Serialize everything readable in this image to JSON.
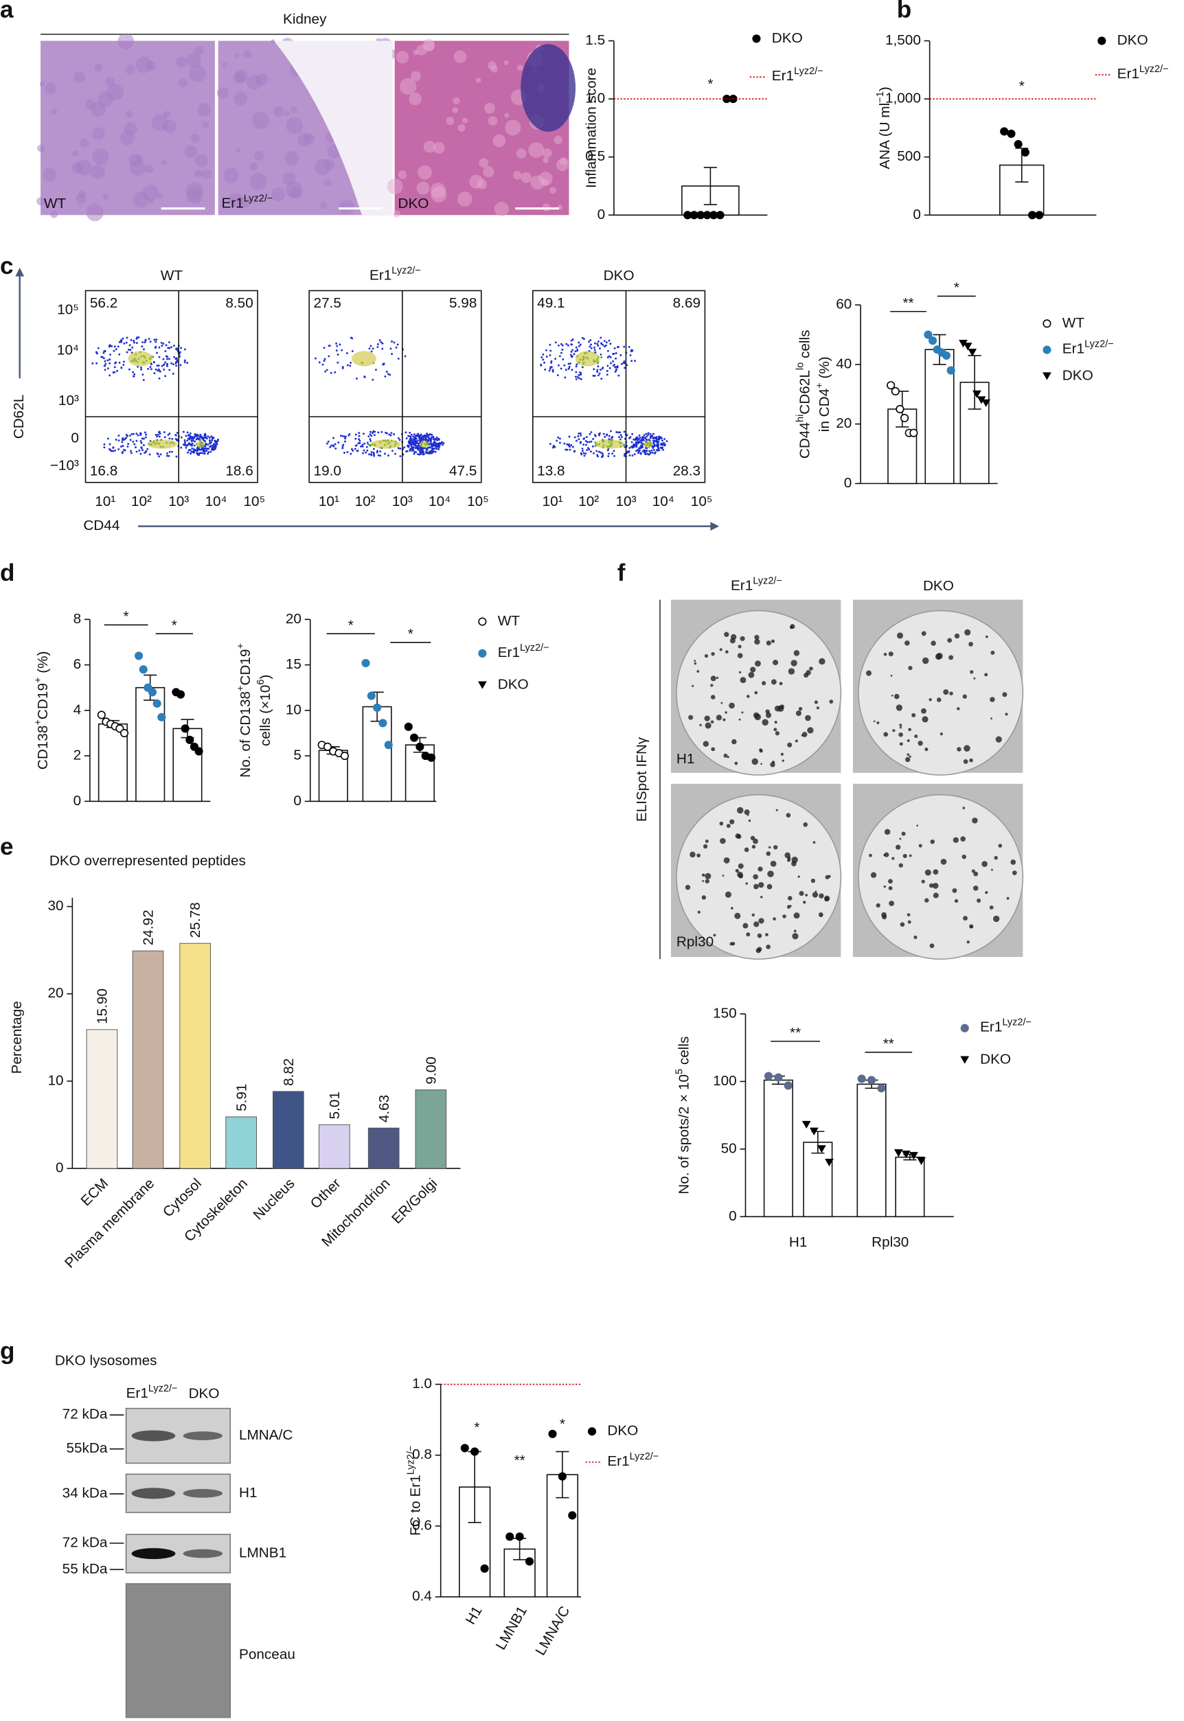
{
  "panel_labels": [
    "a",
    "b",
    "c",
    "d",
    "e",
    "f",
    "g"
  ],
  "kidney": {
    "title": "Kidney",
    "labels": [
      "WT",
      [
        "Er1",
        {
          "sup": "Lyz2/−"
        }
      ],
      "DKO"
    ]
  },
  "flow": {
    "headers": [
      "WT",
      [
        "Er1",
        {
          "sup": "Lyz2/−"
        }
      ],
      "DKO"
    ],
    "ylabel": "CD62L",
    "xlabel": "CD44",
    "yticks": [
      "10⁵",
      "10⁴",
      "10³",
      "0",
      "−10³"
    ],
    "xticks": [
      "10¹",
      "10²",
      "10³",
      "10⁴",
      "10⁵"
    ],
    "quadrants": [
      [
        "56.2",
        "8.50",
        "16.8",
        "18.6"
      ],
      [
        "27.5",
        "5.98",
        "19.0",
        "47.5"
      ],
      [
        "49.1",
        "8.69",
        "13.8",
        "28.3"
      ]
    ]
  },
  "elispot": {
    "columns": [
      [
        "Er1",
        {
          "sup": "Lyz2/−"
        }
      ],
      "DKO"
    ],
    "assay": "ELISpot IFNγ",
    "rows": [
      "H1",
      "Rpl30"
    ]
  },
  "western": {
    "title": "DKO lysosomes",
    "lanes": [
      [
        "Er1",
        {
          "sup": "Lyz2/−"
        }
      ],
      "DKO"
    ],
    "blots": [
      {
        "name": "LMNA/C",
        "markers": [
          "72 kDa",
          "55kDa"
        ]
      },
      {
        "name": "H1",
        "markers": [
          "34 kDa"
        ]
      },
      {
        "name": "LMNB1",
        "markers": [
          "72 kDa",
          "55 kDa"
        ]
      },
      {
        "name": "Ponceau",
        "markers": []
      }
    ]
  },
  "chart_data": [
    {
      "type": "dot-bar",
      "ylabel": [
        "Inflammation score"
      ],
      "ylim": [
        0,
        1.5
      ],
      "yticks": [
        0,
        0.5,
        {
          "value": 1,
          "label": "1.0"
        },
        1.5
      ],
      "series": [
        {
          "name": "DKO",
          "color": "#000000",
          "marker": "circle",
          "means": [
            0.25
          ],
          "errors": [
            0.16
          ],
          "points": [
            [
              0,
              0,
              0,
              0,
              0,
              0,
              1,
              1
            ]
          ]
        }
      ],
      "reference": {
        "name": [
          "Er1",
          {
            "sup": "Lyz2/−"
          }
        ],
        "value": 1,
        "color": "#cc0000"
      },
      "significance": [
        "*"
      ]
    },
    {
      "type": "dot-bar",
      "ylabel": [
        [
          "ANA (U ml",
          {
            "sup": "−1"
          },
          ")"
        ]
      ],
      "ylim": [
        0,
        1500
      ],
      "yticks": [
        0,
        500,
        {
          "value": 1000,
          "label": "1,000"
        },
        {
          "value": 1500,
          "label": "1,500"
        }
      ],
      "series": [
        {
          "name": "DKO",
          "color": "#000000",
          "marker": "circle",
          "means": [
            430
          ],
          "errors": [
            145
          ],
          "points": [
            [
              720,
              700,
              610,
              540,
              0,
              0
            ]
          ]
        }
      ],
      "reference": {
        "name": [
          "Er1",
          {
            "sup": "Lyz2/−"
          }
        ],
        "value": 1000,
        "color": "#cc0000"
      },
      "significance": [
        "*"
      ]
    },
    {
      "type": "dot-bar",
      "ylabel": [
        [
          "CD44",
          {
            "sup": "hi"
          },
          "CD62L",
          {
            "sup": "lo"
          },
          " cells"
        ],
        [
          "in CD4",
          {
            "sup": "+"
          },
          " (%)"
        ]
      ],
      "ylim": [
        0,
        60
      ],
      "yticks": [
        0,
        20,
        40,
        60
      ],
      "series": [
        {
          "name": "WT",
          "color": "#000000",
          "marker": "circle-open",
          "means": [
            25
          ],
          "errors": [
            6
          ],
          "points": [
            [
              33,
              31,
              25,
              22,
              17,
              17
            ]
          ]
        },
        {
          "name": [
            "Er1",
            {
              "sup": "Lyz2/−"
            }
          ],
          "color": "#2e7fb8",
          "marker": "circle",
          "means": [
            45
          ],
          "errors": [
            5
          ],
          "points": [
            [
              50,
              48,
              45,
              44,
              43,
              38
            ]
          ]
        },
        {
          "name": "DKO",
          "color": "#000000",
          "marker": "triangle",
          "means": [
            34
          ],
          "errors": [
            9
          ],
          "points": [
            [
              47,
              46,
              44,
              30,
              28,
              27
            ]
          ]
        }
      ],
      "significance": [
        "**",
        "*"
      ]
    },
    {
      "type": "dot-bar",
      "ylabel": [
        [
          "CD138",
          {
            "sup": "+"
          },
          "CD19",
          {
            "sup": "+"
          },
          " (%)"
        ]
      ],
      "ylim": [
        0,
        8
      ],
      "yticks": [
        0,
        2,
        4,
        6,
        8
      ],
      "series": [
        {
          "color": "#000000",
          "marker": "circle-open",
          "means": [
            3.4
          ],
          "errors": [
            0.15
          ],
          "points": [
            [
              3.8,
              3.5,
              3.4,
              3.3,
              3.2,
              3.0
            ]
          ]
        },
        {
          "color": "#2e7fb8",
          "marker": "circle",
          "means": [
            5.0
          ],
          "errors": [
            0.55
          ],
          "points": [
            [
              6.4,
              5.8,
              5.0,
              4.8,
              4.3,
              3.7
            ]
          ]
        },
        {
          "color": "#000000",
          "marker": "circle",
          "means": [
            3.2
          ],
          "errors": [
            0.4
          ],
          "points": [
            [
              4.8,
              4.7,
              3.2,
              2.7,
              2.4,
              2.2
            ]
          ]
        }
      ],
      "significance": [
        "*",
        "*"
      ]
    },
    {
      "type": "dot-bar",
      "ylabel": [
        [
          "No. of CD138",
          {
            "sup": "+"
          },
          "CD19",
          {
            "sup": "+"
          }
        ],
        [
          "cells (×10",
          {
            "sup": "6"
          },
          ")"
        ]
      ],
      "ylim": [
        0,
        20
      ],
      "yticks": [
        0,
        5,
        10,
        15,
        20
      ],
      "series": [
        {
          "name": "WT",
          "color": "#000000",
          "marker": "circle-open",
          "means": [
            5.6
          ],
          "errors": [
            0.4
          ],
          "points": [
            [
              6.2,
              6.0,
              5.5,
              5.3,
              5.0
            ]
          ]
        },
        {
          "name": [
            "Er1",
            {
              "sup": "Lyz2/−"
            }
          ],
          "color": "#2e7fb8",
          "marker": "circle",
          "means": [
            10.4
          ],
          "errors": [
            1.6
          ],
          "points": [
            [
              15.2,
              11.6,
              10.3,
              8.6,
              6.2
            ]
          ]
        },
        {
          "name": "DKO",
          "color": "#000000",
          "marker": "circle",
          "legend_marker": "triangle",
          "means": [
            6.2
          ],
          "errors": [
            0.8
          ],
          "points": [
            [
              8.2,
              7.0,
              6.0,
              5.0,
              4.8
            ]
          ]
        }
      ],
      "significance": [
        "*",
        "*"
      ]
    },
    {
      "type": "bar",
      "title": "DKO overrepresented peptides",
      "ylabel": [
        "Percentage"
      ],
      "categories": [
        "ECM",
        "Plasma membrane",
        "Cytosol",
        "Cytoskeleton",
        "Nucleus",
        "Other",
        "Mitochondrion",
        "ER/Golgi"
      ],
      "values": [
        15.9,
        24.92,
        25.78,
        5.91,
        8.82,
        5.01,
        4.63,
        9.0
      ],
      "value_labels": [
        "15.90",
        "24.92",
        "25.78",
        "5.91",
        "8.82",
        "5.01",
        "4.63",
        "9.00"
      ],
      "colors": [
        "#f6efe8",
        "#c9b1a1",
        "#f5e08a",
        "#8fd3d8",
        "#3f5587",
        "#d7d0ef",
        "#4f5983",
        "#7aa597"
      ],
      "ylim": [
        0,
        30
      ],
      "yticks": [
        0,
        10,
        20,
        30
      ]
    },
    {
      "type": "dot-bar",
      "ylabel": [
        [
          "No. of spots/2 × 10",
          {
            "sup": "5"
          },
          " cells"
        ]
      ],
      "ylim": [
        0,
        150
      ],
      "yticks": [
        0,
        50,
        100,
        150
      ],
      "categories": [
        "H1",
        "Rpl30"
      ],
      "series": [
        {
          "name": [
            "Er1",
            {
              "sup": "Lyz2/−"
            }
          ],
          "color": "#5c6b8f",
          "marker": "circle",
          "means": [
            101,
            98
          ],
          "errors": [
            3,
            3
          ],
          "points": [
            [
              104,
              103,
              97
            ],
            [
              102,
              101,
              95
            ]
          ]
        },
        {
          "name": "DKO",
          "color": "#000000",
          "marker": "triangle",
          "means": [
            55,
            44
          ],
          "errors": [
            8,
            2
          ],
          "points": [
            [
              68,
              63,
              50,
              40
            ],
            [
              47,
              46,
              45,
              41
            ]
          ]
        }
      ],
      "significance": [
        "**",
        "**"
      ]
    },
    {
      "type": "dot-bar",
      "ylabel": [
        [
          "FC to Er1",
          {
            "sup": "Lyz2/−"
          }
        ]
      ],
      "ylim": [
        0.4,
        1.0
      ],
      "yticks": [
        0.4,
        0.6,
        0.8,
        {
          "value": 1,
          "label": "1.0"
        }
      ],
      "categories": [
        "H1",
        "LMNB1",
        "LMNA/C"
      ],
      "series": [
        {
          "name": "DKO",
          "color": "#000000",
          "marker": "circle",
          "means": [
            0.71,
            0.535,
            0.745
          ],
          "errors": [
            0.1,
            0.03,
            0.065
          ],
          "points": [
            [
              0.82,
              0.81,
              0.48
            ],
            [
              0.57,
              0.57,
              0.5
            ],
            [
              0.86,
              0.74,
              0.63
            ]
          ]
        }
      ],
      "reference": {
        "name": [
          "Er1",
          {
            "sup": "Lyz2/−"
          }
        ],
        "value": 1,
        "color": "#cc0000"
      },
      "significance": [
        "*",
        "**",
        "*"
      ]
    }
  ]
}
